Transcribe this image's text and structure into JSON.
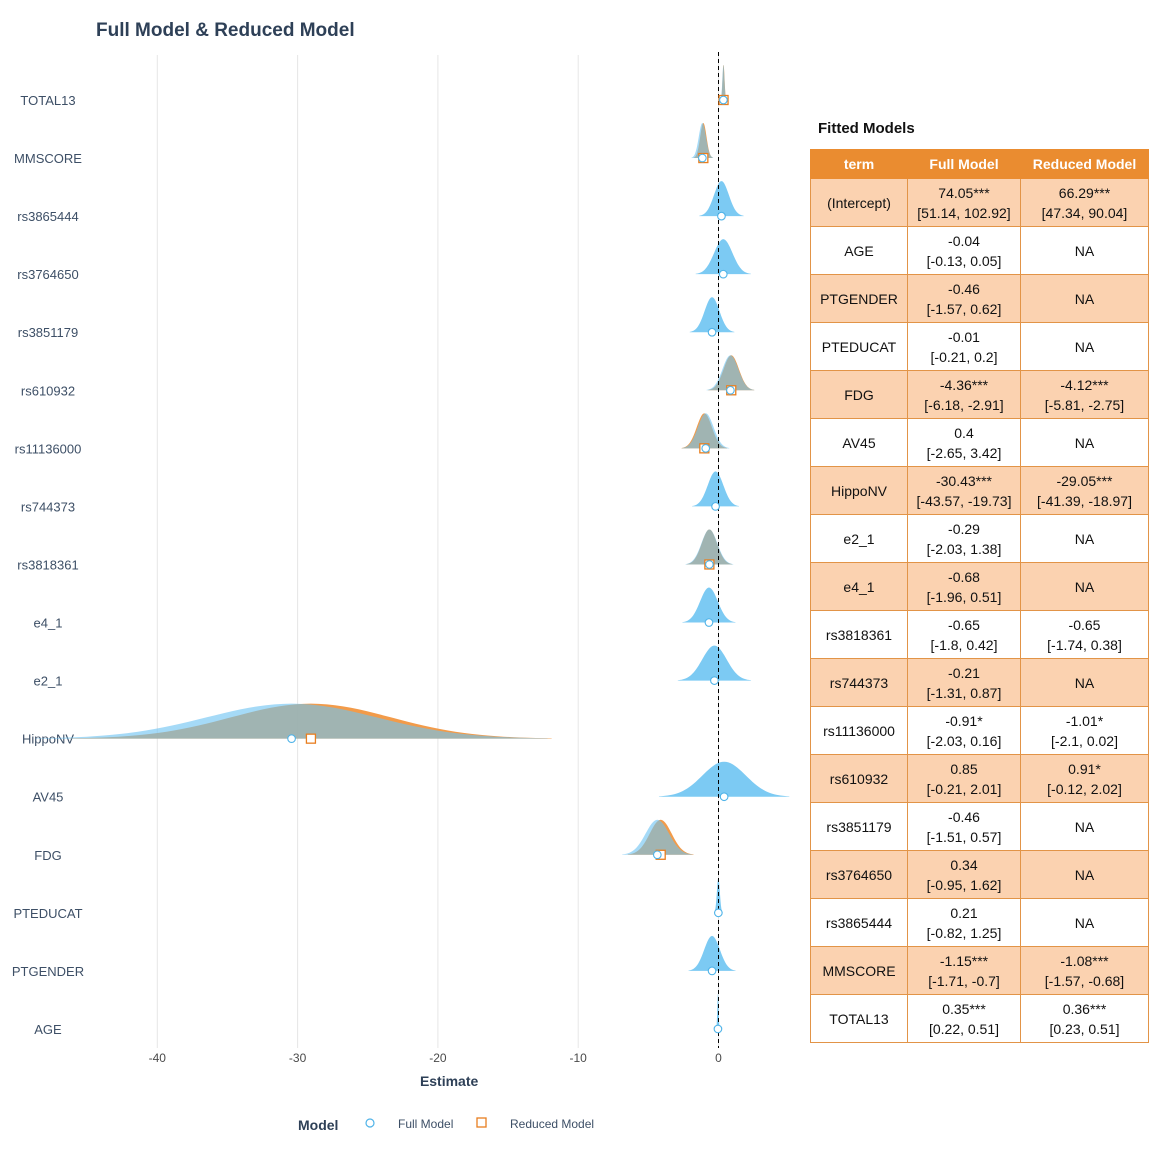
{
  "title": "Full Model & Reduced Model",
  "chart_data": {
    "type": "ridge-coefficient",
    "title": "Full Model & Reduced Model",
    "xlabel": "Estimate",
    "ylabel": "",
    "xlim": [
      -44.5,
      6.5
    ],
    "x_ticks": [
      -40,
      -30,
      -20,
      -10,
      0
    ],
    "x_tick_labels": [
      "-40",
      "-30",
      "-20",
      "-10",
      "0"
    ],
    "reference_line": 0,
    "grid": "vertical major gridlines",
    "legend": {
      "title": "Model",
      "position": "bottom",
      "entries": [
        "Full Model",
        "Reduced Model"
      ]
    },
    "colors": {
      "full": "#6ec4f2",
      "reduced": "#f08a2a",
      "overlap": "#84aec6",
      "full_marker": "#4fb3e8",
      "reduced_marker": "#e87e1f"
    },
    "categories": [
      "TOTAL13",
      "MMSCORE",
      "rs3865444",
      "rs3764650",
      "rs3851179",
      "rs610932",
      "rs11136000",
      "rs744373",
      "rs3818361",
      "e4_1",
      "e2_1",
      "HippoNV",
      "AV45",
      "FDG",
      "PTEDUCAT",
      "PTGENDER",
      "AGE"
    ],
    "series": [
      {
        "name": "Full Model",
        "estimates": [
          0.35,
          -1.15,
          0.21,
          0.34,
          -0.46,
          0.85,
          -0.91,
          -0.21,
          -0.65,
          -0.68,
          -0.29,
          -30.43,
          0.4,
          -4.36,
          -0.01,
          -0.46,
          -0.04
        ],
        "ci_low": [
          0.22,
          -1.71,
          -0.82,
          -0.95,
          -1.51,
          -0.21,
          -2.03,
          -1.31,
          -1.8,
          -1.96,
          -2.03,
          -43.57,
          -2.65,
          -6.18,
          -0.21,
          -1.57,
          -0.13
        ],
        "ci_high": [
          0.51,
          -0.7,
          1.25,
          1.62,
          0.57,
          2.01,
          0.16,
          0.87,
          0.42,
          0.51,
          1.38,
          -19.73,
          3.42,
          -2.91,
          0.2,
          0.62,
          0.05
        ]
      },
      {
        "name": "Reduced Model",
        "estimates": [
          0.36,
          -1.08,
          null,
          null,
          null,
          0.91,
          -1.01,
          null,
          -0.65,
          null,
          null,
          -29.05,
          null,
          -4.12,
          null,
          null,
          null
        ],
        "ci_low": [
          0.23,
          -1.57,
          null,
          null,
          null,
          -0.12,
          -2.1,
          null,
          -1.74,
          null,
          null,
          -41.39,
          null,
          -5.81,
          null,
          null,
          null
        ],
        "ci_high": [
          0.51,
          -0.68,
          null,
          null,
          null,
          2.02,
          0.02,
          null,
          0.38,
          null,
          null,
          -18.97,
          null,
          -2.75,
          null,
          null,
          null
        ]
      }
    ]
  },
  "table": {
    "title": "Fitted Models",
    "headers": [
      "term",
      "Full Model",
      "Reduced Model"
    ],
    "rows": [
      [
        "(Intercept)",
        "74.05***",
        "[51.14, 102.92]",
        "66.29***",
        "[47.34, 90.04]"
      ],
      [
        "AGE",
        "-0.04",
        "[-0.13, 0.05]",
        "NA",
        ""
      ],
      [
        "PTGENDER",
        "-0.46",
        "[-1.57, 0.62]",
        "NA",
        ""
      ],
      [
        "PTEDUCAT",
        "-0.01",
        "[-0.21, 0.2]",
        "NA",
        ""
      ],
      [
        "FDG",
        "-4.36***",
        "[-6.18, -2.91]",
        "-4.12***",
        "[-5.81, -2.75]"
      ],
      [
        "AV45",
        "0.4",
        "[-2.65, 3.42]",
        "NA",
        ""
      ],
      [
        "HippoNV",
        "-30.43***",
        "[-43.57, -19.73]",
        "-29.05***",
        "[-41.39, -18.97]"
      ],
      [
        "e2_1",
        "-0.29",
        "[-2.03, 1.38]",
        "NA",
        ""
      ],
      [
        "e4_1",
        "-0.68",
        "[-1.96, 0.51]",
        "NA",
        ""
      ],
      [
        "rs3818361",
        "-0.65",
        "[-1.8, 0.42]",
        "-0.65",
        "[-1.74, 0.38]"
      ],
      [
        "rs744373",
        "-0.21",
        "[-1.31, 0.87]",
        "NA",
        ""
      ],
      [
        "rs11136000",
        "-0.91*",
        "[-2.03, 0.16]",
        "-1.01*",
        "[-2.1, 0.02]"
      ],
      [
        "rs610932",
        "0.85",
        "[-0.21, 2.01]",
        "0.91*",
        "[-0.12, 2.02]"
      ],
      [
        "rs3851179",
        "-0.46",
        "[-1.51, 0.57]",
        "NA",
        ""
      ],
      [
        "rs3764650",
        "0.34",
        "[-0.95, 1.62]",
        "NA",
        ""
      ],
      [
        "rs3865444",
        "0.21",
        "[-0.82, 1.25]",
        "NA",
        ""
      ],
      [
        "MMSCORE",
        "-1.15***",
        "[-1.71, -0.7]",
        "-1.08***",
        "[-1.57, -0.68]"
      ],
      [
        "TOTAL13",
        "0.35***",
        "[0.22, 0.51]",
        "0.36***",
        "[0.23, 0.51]"
      ]
    ]
  }
}
